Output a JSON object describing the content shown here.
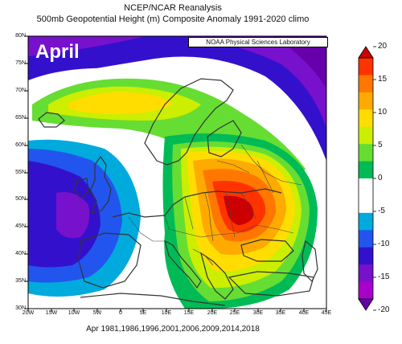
{
  "title": {
    "line1": "NCEP/NCAR Reanalysis",
    "line2": "500mb Geopotential Height (m) Composite Anomaly 1991-2020 climo"
  },
  "month_label": "April",
  "credit": "NOAA Physical Sciences Laboratory",
  "caption": "Apr 1981,1986,1996,2001,2006,2009,2014,2018",
  "map": {
    "lon_ticks": [
      "20W",
      "15W",
      "10W",
      "5W",
      "0",
      "5E",
      "10E",
      "15E",
      "20E",
      "25E",
      "30E",
      "35E",
      "40E",
      "45E"
    ],
    "lat_ticks": [
      "80N",
      "75N",
      "70N",
      "65N",
      "60N",
      "55N",
      "50N",
      "45N",
      "40N",
      "35N",
      "30N"
    ]
  },
  "colorbar": {
    "ticks": [
      "20",
      "15",
      "10",
      "5",
      "0",
      "-5",
      "-10",
      "-15",
      "-20"
    ],
    "colors": [
      "#cc0000",
      "#ff3300",
      "#ff7700",
      "#ffaa00",
      "#ffdd00",
      "#ccee00",
      "#66dd33",
      "#00bb55",
      "#ffffff",
      "#ffffff",
      "#00aadd",
      "#2255ee",
      "#3311cc",
      "#7711cc",
      "#aa00cc",
      "#6600aa"
    ]
  }
}
